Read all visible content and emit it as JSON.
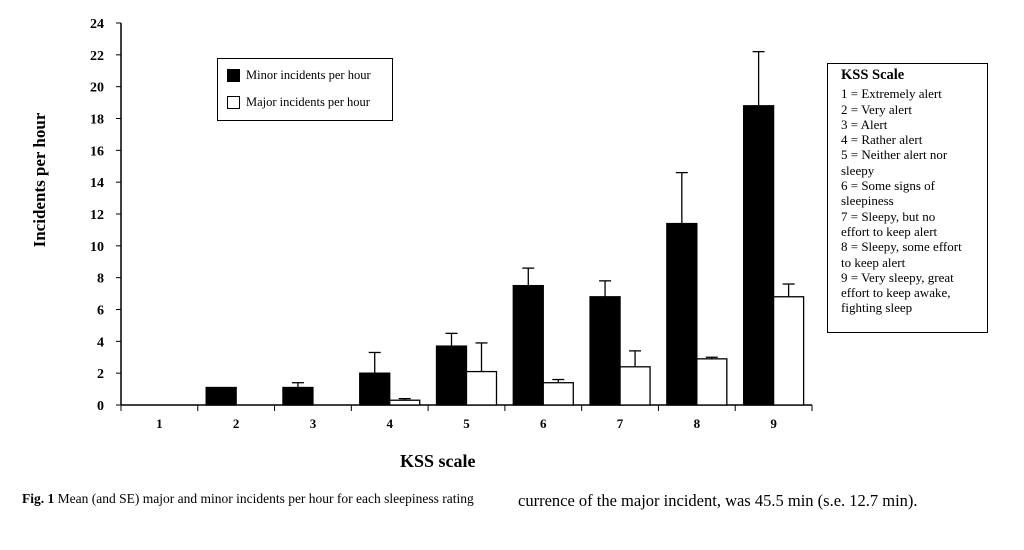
{
  "chart_data": {
    "type": "bar",
    "title": "",
    "xlabel": "KSS scale",
    "ylabel": "Incidents per hour",
    "ylim": [
      0,
      24
    ],
    "yticks": [
      0,
      2,
      4,
      6,
      8,
      10,
      12,
      14,
      16,
      18,
      20,
      22,
      24
    ],
    "categories": [
      "1",
      "2",
      "3",
      "4",
      "5",
      "6",
      "7",
      "8",
      "9"
    ],
    "series": [
      {
        "name": "Minor incidents per hour",
        "color": "#000000",
        "values": [
          0,
          1.1,
          1.1,
          2.0,
          3.7,
          7.5,
          6.8,
          11.4,
          18.8
        ],
        "se_upper": [
          0,
          1.1,
          1.4,
          3.3,
          4.5,
          8.6,
          7.8,
          14.6,
          22.2
        ]
      },
      {
        "name": "Major incidents per hour",
        "color": "#ffffff",
        "values": [
          0,
          0,
          0,
          0.3,
          2.1,
          1.4,
          2.4,
          2.9,
          6.8
        ],
        "se_upper": [
          0,
          0,
          0,
          0.4,
          3.9,
          1.6,
          3.4,
          3.0,
          7.6
        ]
      }
    ],
    "legend_position": "top-left",
    "grid": false
  },
  "kss": {
    "title": "KSS Scale",
    "lines": [
      "1 = Extremely alert",
      "2 = Very alert",
      "3 = Alert",
      "4 = Rather alert",
      "5 = Neither alert nor",
      "sleepy",
      "6 = Some signs of",
      "sleepiness",
      "7 = Sleepy, but no",
      "effort to keep alert",
      "8 = Sleepy, some effort",
      "to keep alert",
      "9 = Very sleepy, great",
      "effort to keep awake,",
      "fighting sleep"
    ]
  },
  "caption": {
    "label": "Fig. 1",
    "text": " Mean (and SE) major and minor incidents per hour for each sleepiness rating"
  },
  "body_text": "currence of the major incident, was 45.5 min (s.e. 12.7 min)."
}
